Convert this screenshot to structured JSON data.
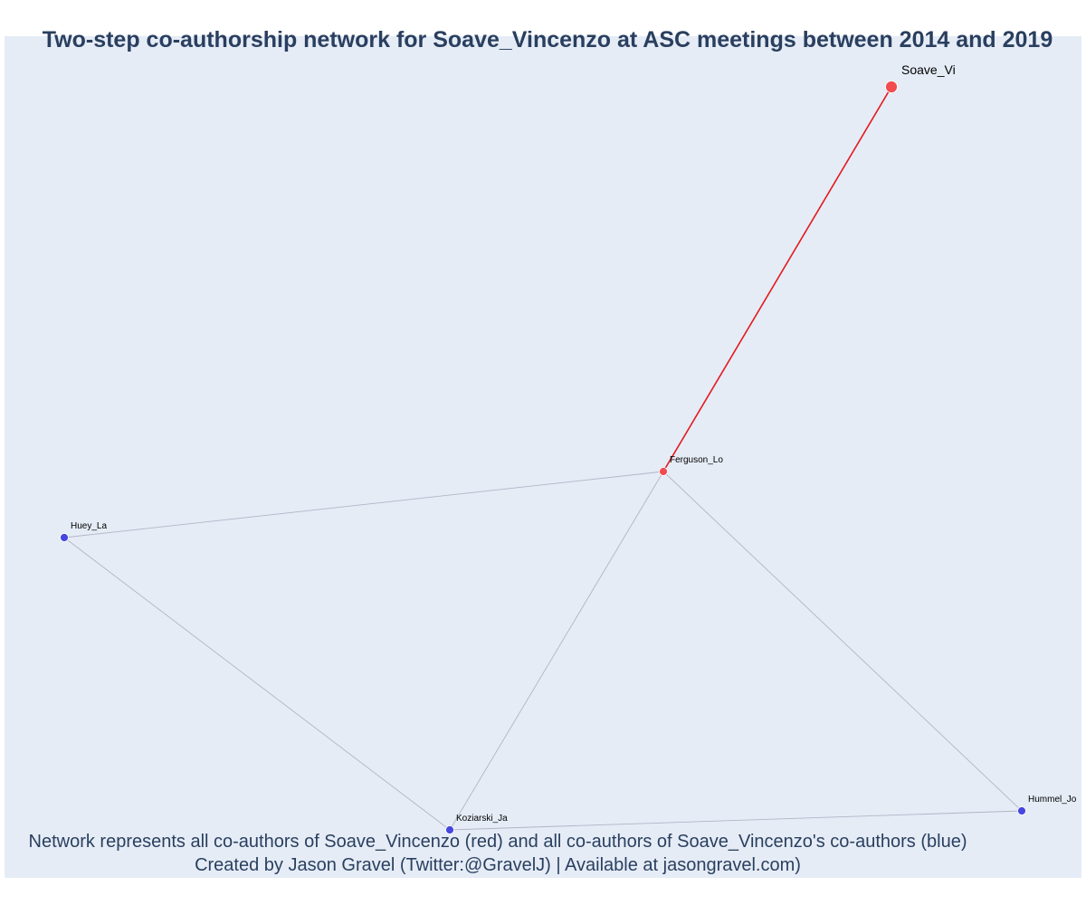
{
  "title": "Two-step co-authorship network for Soave_Vincenzo at ASC meetings between 2014 and 2019",
  "caption": {
    "line1": "Network represents all co-authors of Soave_Vincenzo (red) and all co-authors of Soave_Vincenzo's co-authors (blue)",
    "line2": "Created by Jason Gravel (Twitter:@GravelJ) | Available at jasongravel.com)"
  },
  "colors": {
    "background": "#e5ecf6",
    "focal_edge": "#e31a1c",
    "edge": "#b4b4c6",
    "red_node": "#f24b50",
    "blue_node": "#4646e0"
  },
  "nodes": [
    {
      "id": "Soave_Vi",
      "label": "Soave_Vi",
      "group": "focal"
    },
    {
      "id": "Ferguson_Lo",
      "label": "Ferguson_Lo",
      "group": "red"
    },
    {
      "id": "Huey_La",
      "label": "Huey_La",
      "group": "blue"
    },
    {
      "id": "Koziarski_Ja",
      "label": "Koziarski_Ja",
      "group": "blue"
    },
    {
      "id": "Hummel_Jo",
      "label": "Hummel_Jo",
      "group": "blue"
    }
  ],
  "edges": [
    {
      "source": "Soave_Vi",
      "target": "Ferguson_Lo",
      "focal": true
    },
    {
      "source": "Ferguson_Lo",
      "target": "Huey_La",
      "focal": false
    },
    {
      "source": "Ferguson_Lo",
      "target": "Koziarski_Ja",
      "focal": false
    },
    {
      "source": "Ferguson_Lo",
      "target": "Hummel_Jo",
      "focal": false
    },
    {
      "source": "Huey_La",
      "target": "Koziarski_Ja",
      "focal": false
    },
    {
      "source": "Koziarski_Ja",
      "target": "Hummel_Jo",
      "focal": false
    }
  ]
}
